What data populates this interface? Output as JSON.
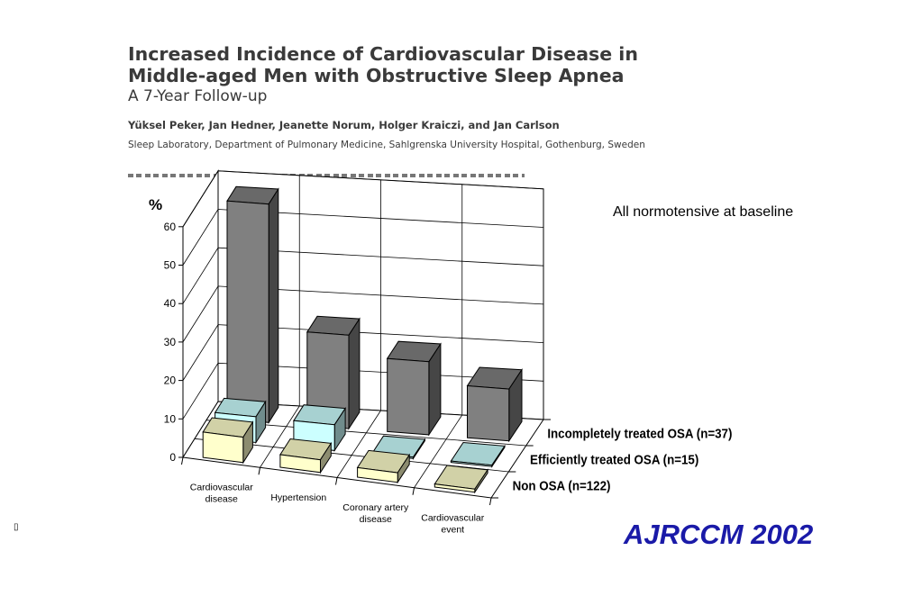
{
  "header": {
    "title_line1": "Increased Incidence of Cardiovascular Disease in",
    "title_line2": "Middle-aged Men with Obstructive Sleep Apnea",
    "subtitle": "A 7-Year Follow-up",
    "authors": "Yüksel Peker, Jan Hedner, Jeanette Norum, Holger Kraiczi, and Jan Carlson",
    "affiliation": "Sleep Laboratory, Department of Pulmonary Medicine, Sahlgrenska University Hospital, Gothenburg, Sweden"
  },
  "note": "All normotensive at baseline",
  "citation": "AJRCCM 2002",
  "bullet": "▯",
  "chart_data": {
    "type": "bar",
    "ylabel": "%",
    "ylim": [
      0,
      60
    ],
    "yticks": [
      "0",
      "10",
      "20",
      "30",
      "40",
      "50",
      "60"
    ],
    "categories": [
      [
        "Cardiovascular",
        "disease"
      ],
      [
        "Hypertension"
      ],
      [
        "Coronary artery",
        "disease"
      ],
      [
        "Cardiovascular",
        "event"
      ]
    ],
    "series": [
      {
        "name": "Incompletely treated OSA (n=37)",
        "values": [
          56.8,
          24.3,
          19.0,
          13.5
        ],
        "color": "#808080"
      },
      {
        "name": "Efficiently treated OSA (n=15)",
        "values": [
          6.7,
          6.7,
          0,
          0
        ],
        "color": "#ccffff"
      },
      {
        "name": "Non OSA (n=122)",
        "values": [
          6.6,
          3.3,
          2.5,
          0.8
        ],
        "color": "#ffffcc"
      }
    ]
  }
}
